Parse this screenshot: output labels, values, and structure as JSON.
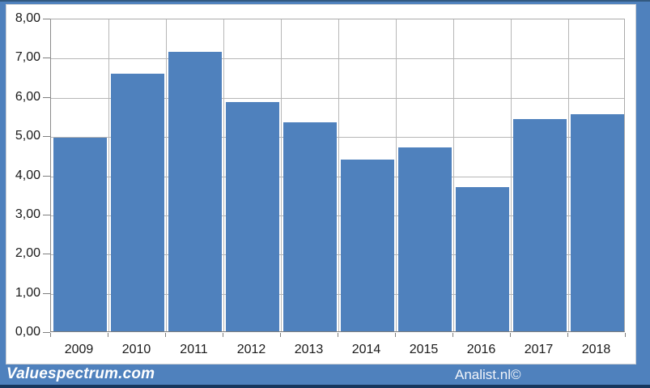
{
  "frame": {
    "color": "#4f81bd",
    "top_edge_color": "#33597f",
    "bottom_edge_color": "#17375e"
  },
  "footer": {
    "brand_text": "Valuespectrum.com",
    "source_text": "Analist.nl©",
    "text_color": "#ffffff"
  },
  "chart_data": {
    "type": "bar",
    "title": "",
    "xlabel": "",
    "ylabel": "",
    "categories": [
      "2009",
      "2010",
      "2011",
      "2012",
      "2013",
      "2014",
      "2015",
      "2016",
      "2017",
      "2018"
    ],
    "values": [
      4.95,
      6.57,
      7.14,
      5.85,
      5.34,
      4.38,
      4.7,
      3.68,
      5.41,
      5.55
    ],
    "ylim": [
      0,
      8
    ],
    "ytick_step": 1,
    "ytick_labels_top_to_bottom": [
      "8,00",
      "7,00",
      "6,00",
      "5,00",
      "4,00",
      "3,00",
      "2,00",
      "1,00",
      "0,00"
    ],
    "decimal_separator": ",",
    "grid": "both",
    "legend_position": "none",
    "bar_color": "#4f81bd",
    "plot_background": "#ffffff",
    "gridline_color": "#b7b7b7",
    "axis_line_color": "#7f7f7f",
    "label_color": "#1a1a1a"
  }
}
